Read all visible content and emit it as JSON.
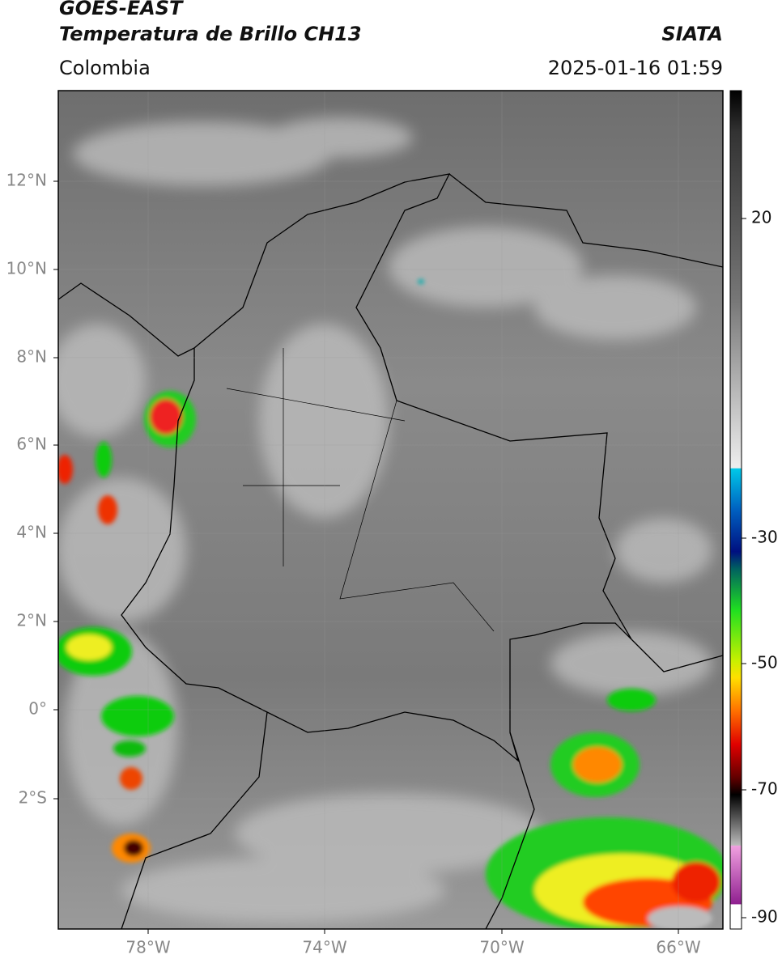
{
  "header": {
    "title_line1": "GOES-EAST",
    "title_line2": "Temperatura de Brillo CH13",
    "source": "SIATA",
    "region": "Colombia",
    "timestamp": "2025-01-16 01:59"
  },
  "map": {
    "lat_labels": [
      "12°N",
      "10°N",
      "8°N",
      "6°N",
      "4°N",
      "2°N",
      "0°",
      "2°S"
    ],
    "lon_labels": [
      "78°W",
      "74°W",
      "70°W",
      "66°W"
    ]
  },
  "colorbar": {
    "ticks": [
      20,
      -30,
      -50,
      -70,
      -90
    ]
  }
}
